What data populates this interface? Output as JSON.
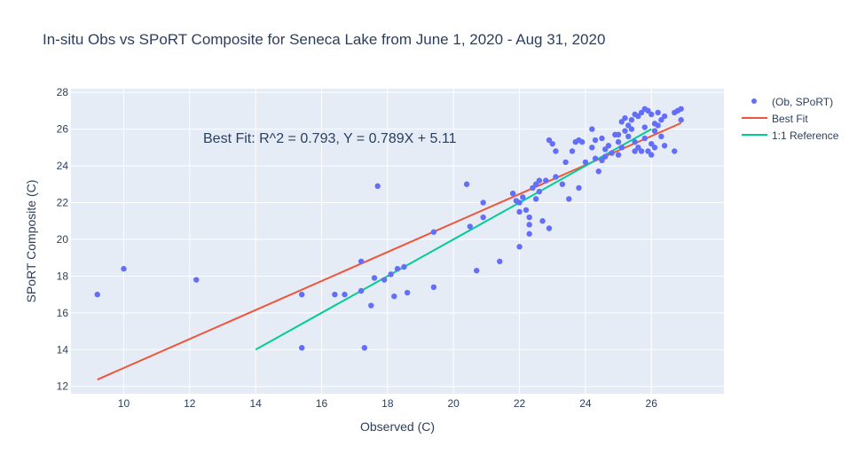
{
  "chart_data": {
    "type": "scatter",
    "title": "In-situ Obs vs SPoRT Composite for Seneca Lake from June 1, 2020 - Aug 31, 2020",
    "xlabel": "Observed (C)",
    "ylabel": "SPoRT Composite (C)",
    "xlim": [
      8.4,
      28.2
    ],
    "ylim": [
      11.6,
      28.2
    ],
    "xticks": [
      10,
      12,
      14,
      16,
      18,
      20,
      22,
      24,
      26
    ],
    "yticks": [
      12,
      14,
      16,
      18,
      20,
      22,
      24,
      26,
      28
    ],
    "grid": true,
    "legend_position": "top-right",
    "annotation": "Best Fit: R^2 = 0.793, Y = 0.789X + 5.11",
    "colors": {
      "background": "#e5ecf6",
      "grid": "#ffffff",
      "text": "#2a3f5f",
      "points": "#636efa",
      "best_fit": "#ef553b",
      "reference": "#00cc96"
    },
    "series": [
      {
        "name": "(Ob, SPoRT)",
        "mode": "markers",
        "x": [
          9.2,
          10.0,
          12.2,
          15.4,
          15.4,
          16.4,
          16.7,
          17.2,
          17.2,
          17.3,
          17.5,
          17.6,
          17.7,
          17.9,
          18.1,
          18.2,
          18.3,
          18.5,
          18.6,
          19.4,
          19.4,
          20.4,
          20.5,
          20.7,
          20.9,
          20.9,
          21.4,
          21.8,
          21.9,
          22.0,
          22.0,
          22.0,
          22.1,
          22.2,
          22.3,
          22.3,
          22.3,
          22.4,
          22.5,
          22.5,
          22.6,
          22.6,
          22.7,
          22.8,
          22.9,
          22.9,
          23.0,
          23.1,
          23.1,
          23.3,
          23.4,
          23.5,
          23.6,
          23.7,
          23.8,
          23.8,
          23.9,
          24.0,
          24.2,
          24.2,
          24.3,
          24.3,
          24.4,
          24.5,
          24.5,
          24.6,
          24.6,
          24.7,
          24.8,
          24.9,
          25.0,
          25.0,
          25.0,
          25.1,
          25.1,
          25.2,
          25.2,
          25.3,
          25.3,
          25.4,
          25.4,
          25.5,
          25.5,
          25.5,
          25.6,
          25.6,
          25.7,
          25.7,
          25.8,
          25.8,
          25.8,
          25.9,
          25.9,
          26.0,
          26.0,
          26.0,
          26.1,
          26.1,
          26.1,
          26.2,
          26.2,
          26.3,
          26.3,
          26.4,
          26.4,
          26.7,
          26.7,
          26.8,
          26.9,
          26.9
        ],
        "y": [
          17.0,
          18.4,
          17.8,
          17.0,
          14.1,
          17.0,
          17.0,
          18.8,
          17.2,
          14.1,
          16.4,
          17.9,
          22.9,
          17.8,
          18.1,
          16.9,
          18.4,
          18.5,
          17.1,
          20.4,
          17.4,
          23.0,
          20.7,
          18.3,
          22.0,
          21.2,
          18.8,
          22.5,
          22.1,
          22.0,
          21.5,
          19.6,
          22.3,
          21.6,
          21.2,
          20.8,
          20.3,
          22.8,
          22.2,
          23.0,
          23.2,
          22.6,
          21.0,
          23.2,
          25.4,
          20.6,
          25.2,
          24.8,
          23.4,
          23.0,
          24.2,
          22.2,
          24.8,
          25.3,
          25.4,
          22.8,
          25.3,
          24.2,
          26.0,
          25.0,
          25.4,
          24.4,
          23.7,
          25.5,
          24.3,
          24.9,
          24.5,
          25.1,
          24.7,
          25.7,
          24.6,
          25.3,
          25.7,
          26.4,
          25.0,
          25.9,
          26.6,
          26.2,
          25.6,
          26.5,
          26.0,
          26.8,
          25.3,
          24.8,
          26.7,
          25.0,
          26.9,
          24.8,
          27.1,
          25.5,
          26.1,
          27.0,
          24.8,
          26.8,
          25.2,
          24.6,
          26.3,
          25.9,
          25.0,
          26.9,
          26.2,
          26.5,
          25.6,
          26.7,
          25.1,
          26.9,
          24.8,
          27.0,
          27.1,
          26.5
        ]
      },
      {
        "name": "Best Fit",
        "mode": "lines",
        "x": [
          9.2,
          26.9
        ],
        "y": [
          12.37,
          26.33
        ]
      },
      {
        "name": "1:1 Reference",
        "mode": "lines",
        "x": [
          14.0,
          26.0
        ],
        "y": [
          14.0,
          26.0
        ]
      }
    ]
  }
}
